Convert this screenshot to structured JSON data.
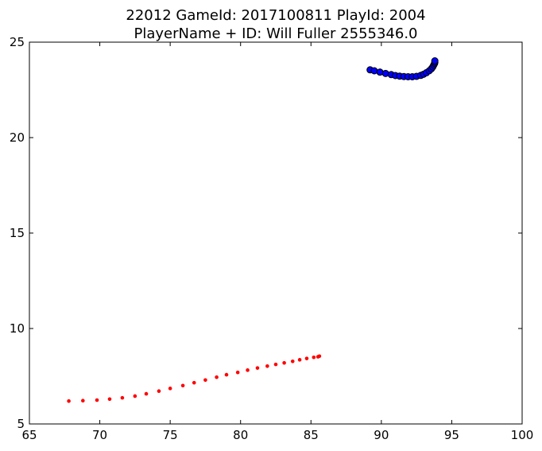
{
  "chart_data": {
    "type": "scatter",
    "title": "22012 GameId: 2017100811 PlayId: 2004",
    "subtitle": "PlayerName + ID: Will Fuller 2555346.0",
    "xlabel": "",
    "ylabel": "",
    "xlim": [
      65,
      100
    ],
    "ylim": [
      5,
      25
    ],
    "xticks": [
      65,
      70,
      75,
      80,
      85,
      90,
      95,
      100
    ],
    "yticks": [
      5,
      10,
      15,
      20,
      25
    ],
    "grid": false,
    "series": [
      {
        "color": "#0000ff",
        "edge_color": "#000000",
        "marker": "large-circle",
        "x": [
          89.2,
          89.5,
          89.9,
          90.3,
          90.7,
          91.0,
          91.3,
          91.6,
          91.9,
          92.2,
          92.5,
          92.8,
          93.0,
          93.2,
          93.4,
          93.55,
          93.65,
          93.72,
          93.78,
          93.8,
          93.8
        ],
        "y": [
          23.55,
          23.5,
          23.43,
          23.36,
          23.3,
          23.25,
          23.22,
          23.2,
          23.19,
          23.19,
          23.21,
          23.26,
          23.32,
          23.4,
          23.5,
          23.6,
          23.7,
          23.8,
          23.88,
          23.95,
          24.02
        ]
      },
      {
        "color": "#ff0000",
        "marker": "small-dot",
        "x": [
          67.8,
          68.8,
          69.8,
          70.7,
          71.6,
          72.5,
          73.3,
          74.2,
          75.0,
          75.9,
          76.7,
          77.5,
          78.3,
          79.0,
          79.8,
          80.5,
          81.2,
          81.9,
          82.5,
          83.1,
          83.7,
          84.2,
          84.7,
          85.2,
          85.5,
          85.6
        ],
        "y": [
          6.2,
          6.22,
          6.25,
          6.3,
          6.37,
          6.46,
          6.58,
          6.72,
          6.86,
          7.01,
          7.16,
          7.3,
          7.45,
          7.58,
          7.7,
          7.82,
          7.93,
          8.03,
          8.12,
          8.2,
          8.28,
          8.36,
          8.43,
          8.49,
          8.52,
          8.55
        ]
      }
    ]
  }
}
